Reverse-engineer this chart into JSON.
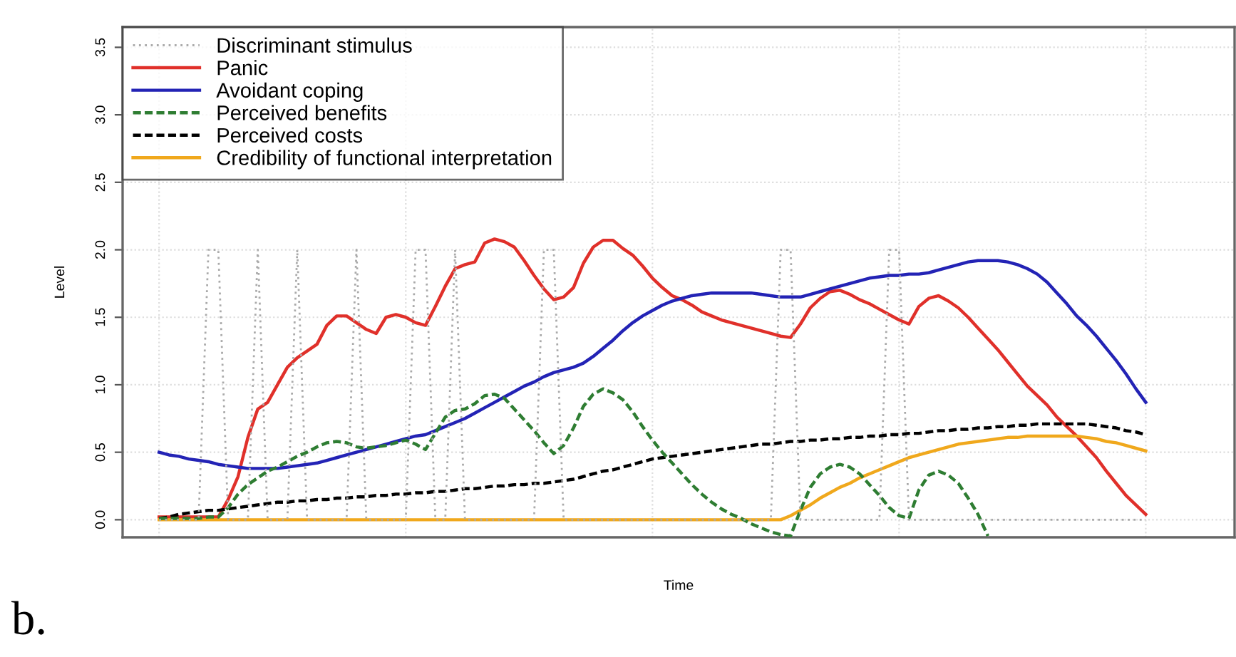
{
  "chart_data": {
    "type": "line",
    "xlabel": "Time",
    "ylabel": "Level",
    "categories": [
      null,
      null,
      null,
      null,
      null,
      null,
      null,
      null,
      null,
      null,
      null,
      null,
      null,
      null,
      null,
      null,
      null,
      null,
      null,
      null,
      null,
      null,
      null,
      null,
      null,
      null,
      null,
      null,
      null,
      null,
      null,
      null,
      null,
      null,
      null,
      null,
      null,
      null,
      null,
      null,
      null,
      null,
      null,
      null,
      null,
      null,
      null,
      null,
      null,
      null,
      null,
      null,
      null,
      null,
      null,
      null,
      null,
      null,
      null,
      null,
      null,
      null,
      null,
      null,
      null,
      null,
      null,
      null,
      null,
      null,
      null,
      null,
      null,
      null,
      null,
      null,
      null,
      null,
      null,
      null,
      null,
      null,
      null,
      null,
      null,
      null,
      null,
      null,
      null,
      null,
      null,
      null,
      null,
      null,
      null,
      null,
      null,
      null,
      null,
      null,
      null
    ],
    "series": [
      {
        "name": "Discriminant stimulus",
        "color": "#aaaaaa",
        "line_style": "dotted",
        "values": [
          0,
          0,
          0,
          0,
          0,
          2,
          2,
          0,
          0,
          0,
          2,
          0,
          0,
          0,
          2,
          0,
          0,
          0,
          0,
          0,
          2,
          0,
          0,
          0,
          0,
          0,
          2,
          2,
          0,
          0,
          2,
          0,
          0,
          0,
          0,
          0,
          0,
          0,
          0,
          2,
          2,
          0,
          0,
          0,
          0,
          0,
          0,
          0,
          0,
          0,
          0,
          0,
          0,
          0,
          0,
          0,
          0,
          0,
          0,
          0,
          0,
          0,
          0,
          2,
          2,
          0,
          0,
          0,
          0,
          0,
          0,
          0,
          0,
          0,
          2,
          2,
          0,
          0,
          0,
          0,
          0,
          0,
          0,
          0,
          0,
          0,
          0,
          0,
          0,
          0,
          0,
          0,
          0,
          0,
          0,
          0,
          0,
          0,
          0,
          0,
          0
        ]
      },
      {
        "name": "Panic",
        "color": "#e0302a",
        "line_style": "solid",
        "values": [
          0.02,
          0.02,
          0.02,
          0.02,
          0.02,
          0.02,
          0.02,
          0.15,
          0.32,
          0.61,
          0.82,
          0.87,
          1.0,
          1.13,
          1.2,
          1.25,
          1.3,
          1.44,
          1.51,
          1.51,
          1.46,
          1.41,
          1.38,
          1.5,
          1.52,
          1.5,
          1.46,
          1.44,
          1.58,
          1.73,
          1.86,
          1.89,
          1.91,
          2.05,
          2.08,
          2.06,
          2.02,
          1.92,
          1.81,
          1.71,
          1.63,
          1.65,
          1.72,
          1.9,
          2.02,
          2.07,
          2.07,
          2.01,
          1.96,
          1.88,
          1.79,
          1.72,
          1.66,
          1.63,
          1.59,
          1.54,
          1.51,
          1.48,
          1.46,
          1.44,
          1.42,
          1.4,
          1.38,
          1.36,
          1.35,
          1.45,
          1.57,
          1.64,
          1.69,
          1.7,
          1.67,
          1.63,
          1.6,
          1.56,
          1.52,
          1.48,
          1.45,
          1.58,
          1.64,
          1.66,
          1.62,
          1.57,
          1.5,
          1.42,
          1.34,
          1.26,
          1.17,
          1.08,
          0.99,
          0.92,
          0.85,
          0.76,
          0.69,
          0.62,
          0.54,
          0.46,
          0.36,
          0.27,
          0.18,
          0.11,
          0.04
        ]
      },
      {
        "name": "Avoidant coping",
        "color": "#2323b5",
        "line_style": "solid",
        "values": [
          0.5,
          0.48,
          0.47,
          0.45,
          0.44,
          0.43,
          0.41,
          0.4,
          0.39,
          0.38,
          0.38,
          0.38,
          0.38,
          0.39,
          0.4,
          0.41,
          0.42,
          0.44,
          0.46,
          0.48,
          0.5,
          0.52,
          0.54,
          0.56,
          0.58,
          0.6,
          0.62,
          0.63,
          0.66,
          0.69,
          0.72,
          0.75,
          0.79,
          0.83,
          0.87,
          0.91,
          0.95,
          0.99,
          1.02,
          1.06,
          1.09,
          1.11,
          1.13,
          1.16,
          1.21,
          1.27,
          1.33,
          1.4,
          1.46,
          1.51,
          1.55,
          1.59,
          1.62,
          1.64,
          1.66,
          1.67,
          1.68,
          1.68,
          1.68,
          1.68,
          1.68,
          1.67,
          1.66,
          1.65,
          1.65,
          1.65,
          1.67,
          1.69,
          1.71,
          1.73,
          1.75,
          1.77,
          1.79,
          1.8,
          1.81,
          1.81,
          1.82,
          1.82,
          1.83,
          1.85,
          1.87,
          1.89,
          1.91,
          1.92,
          1.92,
          1.92,
          1.91,
          1.89,
          1.86,
          1.82,
          1.76,
          1.68,
          1.6,
          1.51,
          1.44,
          1.36,
          1.27,
          1.18,
          1.08,
          0.97,
          0.87
        ]
      },
      {
        "name": "Perceived benefits",
        "color": "#2e7d32",
        "line_style": "dashed",
        "values": [
          0.01,
          0.01,
          0.01,
          0.01,
          0.01,
          0.02,
          0.02,
          0.09,
          0.19,
          0.26,
          0.31,
          0.36,
          0.39,
          0.43,
          0.47,
          0.5,
          0.54,
          0.57,
          0.58,
          0.57,
          0.54,
          0.53,
          0.54,
          0.55,
          0.57,
          0.59,
          0.56,
          0.52,
          0.64,
          0.76,
          0.81,
          0.82,
          0.86,
          0.92,
          0.93,
          0.9,
          0.82,
          0.74,
          0.66,
          0.57,
          0.49,
          0.55,
          0.68,
          0.84,
          0.93,
          0.97,
          0.94,
          0.89,
          0.8,
          0.69,
          0.59,
          0.5,
          0.42,
          0.34,
          0.26,
          0.19,
          0.13,
          0.08,
          0.04,
          0.01,
          -0.03,
          -0.06,
          -0.09,
          -0.11,
          -0.12,
          0.07,
          0.24,
          0.34,
          0.39,
          0.41,
          0.39,
          0.34,
          0.26,
          0.18,
          0.09,
          0.03,
          0.01,
          0.22,
          0.33,
          0.36,
          0.33,
          0.27,
          0.16,
          0.04,
          -0.12,
          null,
          null,
          null,
          null,
          null,
          null,
          null,
          null,
          null,
          null,
          null,
          null,
          null,
          null,
          null,
          null
        ]
      },
      {
        "name": "Perceived costs",
        "color": "#000000",
        "line_style": "dashed",
        "values": [
          0.01,
          0.02,
          0.04,
          0.05,
          0.06,
          0.07,
          0.07,
          0.08,
          0.09,
          0.1,
          0.11,
          0.12,
          0.13,
          0.13,
          0.14,
          0.14,
          0.15,
          0.15,
          0.16,
          0.16,
          0.17,
          0.17,
          0.18,
          0.18,
          0.19,
          0.19,
          0.2,
          0.2,
          0.21,
          0.21,
          0.22,
          0.23,
          0.23,
          0.24,
          0.25,
          0.25,
          0.26,
          0.26,
          0.27,
          0.27,
          0.28,
          0.29,
          0.3,
          0.32,
          0.34,
          0.36,
          0.37,
          0.39,
          0.41,
          0.43,
          0.45,
          0.46,
          0.47,
          0.48,
          0.49,
          0.5,
          0.51,
          0.52,
          0.53,
          0.54,
          0.55,
          0.56,
          0.56,
          0.57,
          0.58,
          0.58,
          0.59,
          0.59,
          0.6,
          0.6,
          0.61,
          0.61,
          0.62,
          0.62,
          0.63,
          0.63,
          0.64,
          0.64,
          0.65,
          0.66,
          0.66,
          0.67,
          0.67,
          0.68,
          0.68,
          0.69,
          0.69,
          0.7,
          0.7,
          0.71,
          0.71,
          0.71,
          0.71,
          0.71,
          0.71,
          0.7,
          0.69,
          0.68,
          0.66,
          0.65,
          0.63
        ]
      },
      {
        "name": "Credibility of functional interpretation",
        "color": "#f0a81c",
        "line_style": "solid",
        "values": [
          0,
          0,
          0,
          0,
          0,
          0,
          0,
          0,
          0,
          0,
          0,
          0,
          0,
          0,
          0,
          0,
          0,
          0,
          0,
          0,
          0,
          0,
          0,
          0,
          0,
          0,
          0,
          0,
          0,
          0,
          0,
          0,
          0,
          0,
          0,
          0,
          0,
          0,
          0,
          0,
          0,
          0,
          0,
          0,
          0,
          0,
          0,
          0,
          0,
          0,
          0,
          0,
          0,
          0,
          0,
          0,
          0,
          0,
          0,
          0,
          0,
          0,
          0,
          0,
          0.03,
          0.07,
          0.11,
          0.16,
          0.2,
          0.24,
          0.27,
          0.31,
          0.34,
          0.37,
          0.4,
          0.43,
          0.46,
          0.48,
          0.5,
          0.52,
          0.54,
          0.56,
          0.57,
          0.58,
          0.59,
          0.6,
          0.61,
          0.61,
          0.62,
          0.62,
          0.62,
          0.62,
          0.62,
          0.62,
          0.61,
          0.6,
          0.58,
          0.57,
          0.55,
          0.53,
          0.51
        ]
      }
    ],
    "ylim": [
      -0.13,
      3.65
    ],
    "yticks": [
      {
        "value": 0,
        "label": "0.0"
      },
      {
        "value": 0.5,
        "label": "0.5"
      },
      {
        "value": 1,
        "label": "1.0"
      },
      {
        "value": 1.5,
        "label": "1.5"
      },
      {
        "value": 2,
        "label": "2.0"
      },
      {
        "value": 2.5,
        "label": "2.5"
      },
      {
        "value": 3,
        "label": "3.0"
      },
      {
        "value": 3.5,
        "label": "3.5"
      }
    ],
    "grid": true,
    "legend": "top left",
    "annotations": [
      "b."
    ]
  }
}
